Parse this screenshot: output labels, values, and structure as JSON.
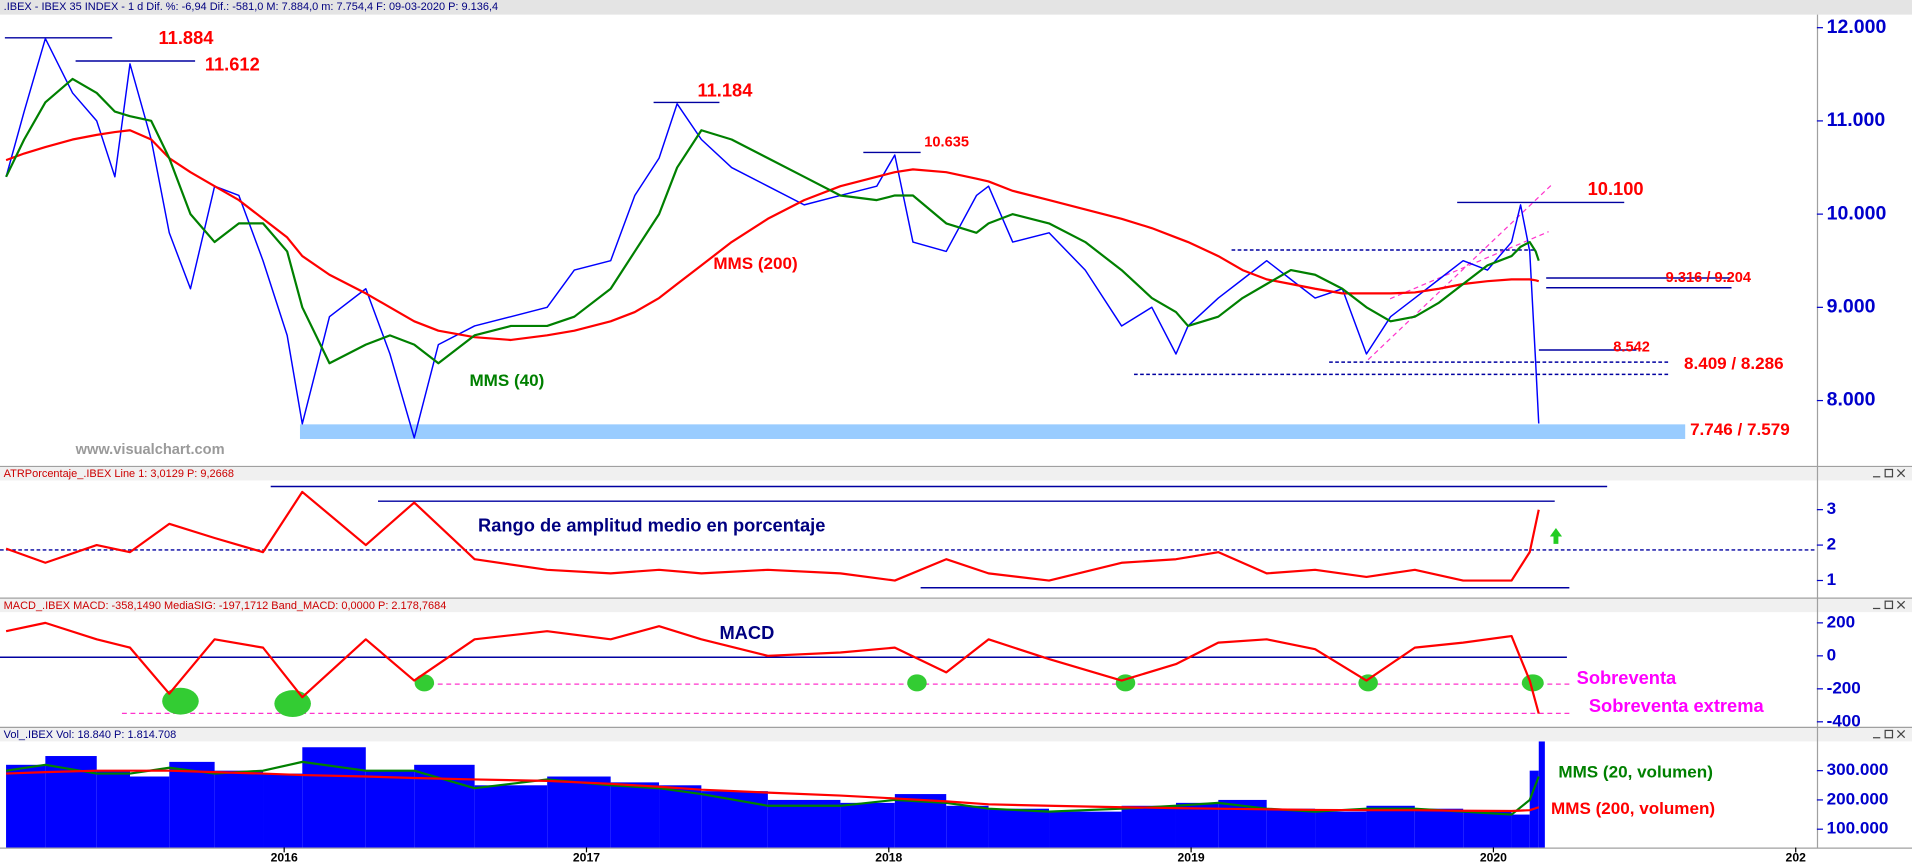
{
  "chart_data": [
    {
      "type": "line",
      "title": ".IBEX - IBEX 35 INDEX -  1 d  Dif. %: -6,94  Dif.: -581,0  M: 7.884,0  m: 7.754,4  F: 09-03-2020  P: 9.136,4",
      "x": [
        2015.08,
        2015.14,
        2015.21,
        2015.3,
        2015.38,
        2015.44,
        2015.49,
        2015.56,
        2015.62,
        2015.69,
        2015.77,
        2015.85,
        2015.93,
        2016.01,
        2016.06,
        2016.15,
        2016.27,
        2016.35,
        2016.43,
        2016.51,
        2016.63,
        2016.75,
        2016.87,
        2016.96,
        2017.08,
        2017.16,
        2017.24,
        2017.3,
        2017.38,
        2017.48,
        2017.6,
        2017.72,
        2017.84,
        2017.96,
        2018.02,
        2018.08,
        2018.19,
        2018.29,
        2018.33,
        2018.41,
        2018.53,
        2018.65,
        2018.77,
        2018.87,
        2018.95,
        2018.99,
        2019.09,
        2019.17,
        2019.25,
        2019.33,
        2019.41,
        2019.5,
        2019.58,
        2019.66,
        2019.74,
        2019.82,
        2019.9,
        2019.98,
        2020.06,
        2020.09,
        2020.12,
        2020.14,
        2020.15
      ],
      "series": [
        {
          "color": "#0000ff",
          "values": [
            10400,
            11100,
            11884,
            11300,
            11000,
            10400,
            11612,
            10800,
            9800,
            9200,
            10300,
            10200,
            9500,
            8700,
            7750,
            8900,
            9200,
            8500,
            7600,
            8600,
            8800,
            8900,
            9000,
            9400,
            9500,
            10200,
            10600,
            11184,
            10800,
            10500,
            10300,
            10100,
            10200,
            10300,
            10635,
            9700,
            9600,
            10200,
            10300,
            9700,
            9800,
            9400,
            8800,
            9000,
            8500,
            8800,
            9100,
            9300,
            9500,
            9300,
            9100,
            9200,
            8500,
            8900,
            9100,
            9300,
            9500,
            9400,
            9700,
            10100,
            9600,
            8400,
            7754
          ]
        },
        {
          "name": "MMS (200)",
          "color": "#ff0000",
          "values": [
            10580,
            10650,
            10720,
            10800,
            10850,
            10880,
            10900,
            10800,
            10600,
            10450,
            10300,
            10150,
            9950,
            9750,
            9550,
            9350,
            9150,
            9000,
            8850,
            8750,
            8680,
            8650,
            8700,
            8750,
            8850,
            8950,
            9100,
            9250,
            9450,
            9700,
            9950,
            10150,
            10300,
            10400,
            10450,
            10480,
            10450,
            10380,
            10350,
            10250,
            10150,
            10050,
            9950,
            9850,
            9750,
            9700,
            9550,
            9400,
            9300,
            9250,
            9200,
            9150,
            9150,
            9150,
            9160,
            9200,
            9250,
            9280,
            9300,
            9300,
            9300,
            9290,
            9280
          ]
        },
        {
          "name": "MMS (40)",
          "color": "#008000",
          "values": [
            10400,
            10800,
            11200,
            11450,
            11300,
            11100,
            11050,
            11000,
            10600,
            10000,
            9700,
            9900,
            9900,
            9600,
            9000,
            8400,
            8600,
            8700,
            8600,
            8400,
            8700,
            8800,
            8800,
            8900,
            9200,
            9600,
            10000,
            10500,
            10900,
            10800,
            10600,
            10400,
            10200,
            10150,
            10200,
            10200,
            9900,
            9800,
            9900,
            10000,
            9900,
            9700,
            9400,
            9100,
            8950,
            8800,
            8900,
            9100,
            9250,
            9400,
            9350,
            9200,
            9000,
            8850,
            8900,
            9050,
            9250,
            9450,
            9550,
            9650,
            9700,
            9600,
            9500
          ]
        }
      ],
      "xlim": [
        2015.06,
        2021.07
      ],
      "ylim": [
        7300,
        12140
      ],
      "yticks": [
        {
          "value": 8000,
          "label": "8.000"
        },
        {
          "value": 9000,
          "label": "9.000"
        },
        {
          "value": 10000,
          "label": "10.000"
        },
        {
          "value": 11000,
          "label": "11.000"
        },
        {
          "value": 12000,
          "label": "12.000"
        }
      ],
      "annotations": [
        {
          "text": "11.884",
          "color": "#ff0000"
        },
        {
          "text": "11.612",
          "color": "#ff0000"
        },
        {
          "text": "11.184",
          "color": "#ff0000"
        },
        {
          "text": "10.635",
          "color": "#ff0000"
        },
        {
          "text": "10.100",
          "color": "#ff0000"
        },
        {
          "text": "9.316 / 9.204",
          "color": "#ff0000"
        },
        {
          "text": "8.542",
          "color": "#ff0000"
        },
        {
          "text": "8.409 / 8.286",
          "color": "#ff0000"
        },
        {
          "text": "7.746 / 7.579",
          "color": "#ff0000"
        },
        {
          "text": "www.visualchart.com",
          "color": "#9a9a9a"
        }
      ]
    },
    {
      "type": "line",
      "title": "ATRPorcentaje_.IBEX Line 1: 3,0129 P: 9,2668",
      "x": [
        2015.08,
        2015.21,
        2015.38,
        2015.49,
        2015.62,
        2015.77,
        2015.93,
        2016.06,
        2016.27,
        2016.43,
        2016.63,
        2016.87,
        2017.08,
        2017.24,
        2017.38,
        2017.6,
        2017.84,
        2018.02,
        2018.19,
        2018.33,
        2018.53,
        2018.77,
        2018.95,
        2019.09,
        2019.25,
        2019.41,
        2019.58,
        2019.74,
        2019.9,
        2020.06,
        2020.12,
        2020.15
      ],
      "series": [
        {
          "color": "#ff0000",
          "values": [
            1.9,
            1.5,
            2.0,
            1.8,
            2.6,
            2.2,
            1.8,
            3.5,
            2.0,
            3.2,
            1.6,
            1.3,
            1.2,
            1.3,
            1.2,
            1.3,
            1.2,
            1.0,
            1.6,
            1.2,
            1.0,
            1.5,
            1.6,
            1.8,
            1.2,
            1.3,
            1.1,
            1.3,
            1.0,
            1.0,
            1.8,
            3.0
          ]
        }
      ],
      "xlim": [
        2015.06,
        2021.07
      ],
      "ylim": [
        0.52,
        3.79
      ],
      "yticks": [
        1,
        2,
        3
      ],
      "annotations": [
        {
          "text": "Rango de amplitud medio en porcentaje",
          "color": "#000080"
        }
      ]
    },
    {
      "type": "line",
      "title": "MACD_.IBEX MACD: -358,1490 MediaSIG: -197,1712 Band_MACD: 0,0000 P: 2.178,7684",
      "x": [
        2015.08,
        2015.21,
        2015.38,
        2015.49,
        2015.62,
        2015.77,
        2015.93,
        2016.06,
        2016.27,
        2016.43,
        2016.63,
        2016.87,
        2017.08,
        2017.24,
        2017.38,
        2017.6,
        2017.84,
        2018.02,
        2018.19,
        2018.33,
        2018.53,
        2018.77,
        2018.95,
        2019.09,
        2019.25,
        2019.41,
        2019.58,
        2019.74,
        2019.9,
        2020.06,
        2020.12,
        2020.15
      ],
      "series": [
        {
          "color": "#ff0000",
          "values": [
            150,
            200,
            100,
            50,
            -230,
            100,
            50,
            -250,
            100,
            -150,
            100,
            150,
            100,
            180,
            100,
            0,
            20,
            50,
            -100,
            100,
            -20,
            -150,
            -50,
            80,
            100,
            40,
            -150,
            50,
            80,
            120,
            -150,
            -350
          ]
        }
      ],
      "xlim": [
        2015.06,
        2021.07
      ],
      "ylim": [
        -430,
        265
      ],
      "yticks": [
        -400,
        -200,
        0,
        200
      ],
      "annotations": [
        {
          "text": "MACD",
          "color": "#000080"
        },
        {
          "text": "Sobreventa",
          "color": "#ff00ff"
        },
        {
          "text": "Sobreventa extrema",
          "color": "#ff00ff"
        }
      ]
    },
    {
      "type": "bar",
      "title": "Vol_.IBEX Vol: 18.840 P: 1.814.708",
      "x": [
        2015.08,
        2015.21,
        2015.38,
        2015.49,
        2015.62,
        2015.77,
        2015.93,
        2016.06,
        2016.27,
        2016.43,
        2016.63,
        2016.87,
        2017.08,
        2017.24,
        2017.38,
        2017.6,
        2017.84,
        2018.02,
        2018.19,
        2018.33,
        2018.53,
        2018.77,
        2018.95,
        2019.09,
        2019.25,
        2019.41,
        2019.58,
        2019.74,
        2019.9,
        2020.06,
        2020.12,
        2020.15
      ],
      "values": [
        320000,
        350000,
        300000,
        280000,
        330000,
        300000,
        290000,
        380000,
        300000,
        320000,
        250000,
        280000,
        260000,
        250000,
        230000,
        200000,
        190000,
        220000,
        180000,
        170000,
        160000,
        180000,
        190000,
        200000,
        170000,
        160000,
        180000,
        170000,
        160000,
        150000,
        300000,
        400000
      ],
      "color": "#0000ff",
      "series": [
        {
          "name": "MMS (20, volumen)",
          "color": "#008000",
          "values": [
            300000,
            320000,
            290000,
            290000,
            310000,
            290000,
            300000,
            330000,
            300000,
            300000,
            240000,
            270000,
            250000,
            240000,
            220000,
            180000,
            180000,
            200000,
            190000,
            170000,
            160000,
            170000,
            180000,
            190000,
            170000,
            160000,
            170000,
            170000,
            160000,
            150000,
            200000,
            280000
          ]
        },
        {
          "name": "MMS (200, volumen)",
          "color": "#ff0000",
          "values": [
            290000,
            295000,
            300000,
            300000,
            300000,
            295000,
            290000,
            285000,
            280000,
            275000,
            270000,
            265000,
            255000,
            245000,
            235000,
            225000,
            215000,
            205000,
            195000,
            185000,
            180000,
            175000,
            172000,
            170000,
            168000,
            166000,
            165000,
            165000,
            163000,
            162000,
            165000,
            175000
          ]
        }
      ],
      "xlim": [
        2015.06,
        2021.07
      ],
      "ylim": [
        37500,
        400000
      ],
      "yticks": [
        {
          "value": 100000,
          "label": "100.000"
        },
        {
          "value": 200000,
          "label": "200.000"
        },
        {
          "value": 300000,
          "label": "300.000"
        }
      ],
      "xticks": [
        2016,
        2017,
        2018,
        2019,
        2020,
        {
          "value": 2021,
          "label": "202"
        }
      ]
    }
  ]
}
